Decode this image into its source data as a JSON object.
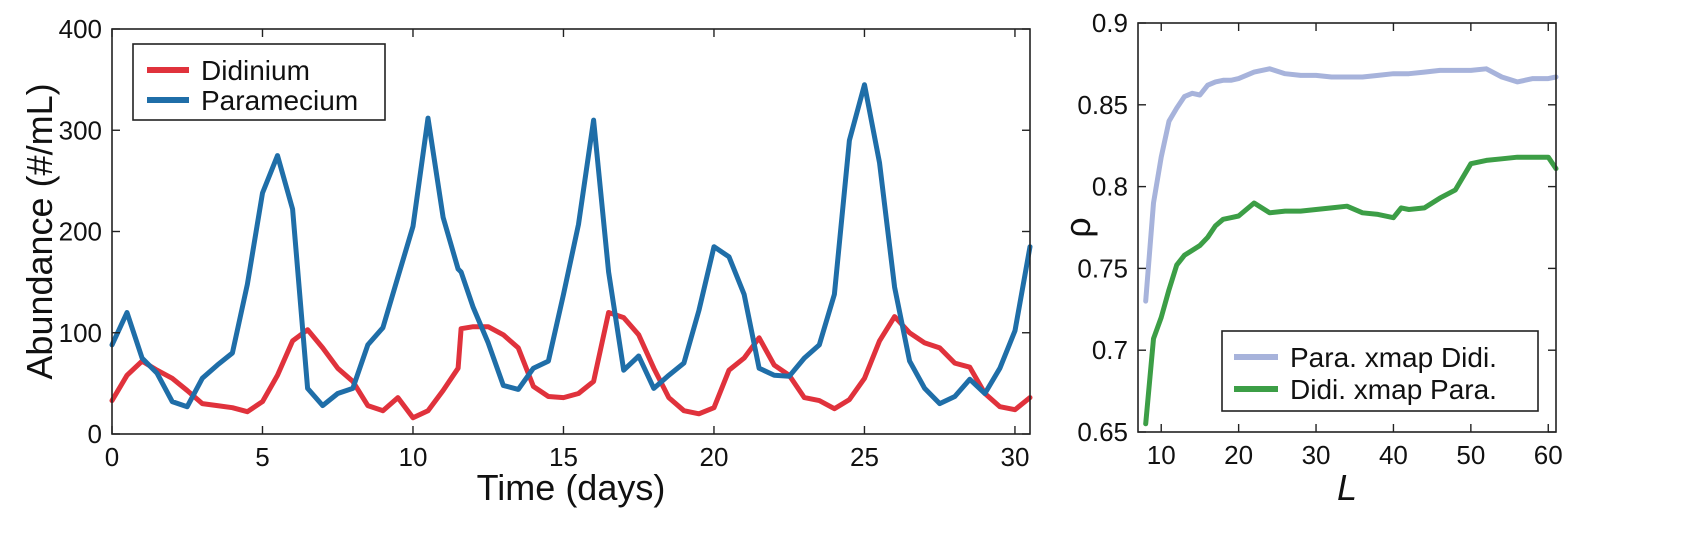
{
  "chart_data": [
    {
      "type": "line",
      "title": "",
      "xlabel": "Time (days)",
      "ylabel": "Abundance (#/mL)",
      "xlim": [
        0,
        30.5
      ],
      "ylim": [
        0,
        400
      ],
      "xticks": [
        "0",
        "5",
        "10",
        "15",
        "20",
        "25",
        "30"
      ],
      "yticks": [
        "0",
        "100",
        "200",
        "300",
        "400"
      ],
      "legend_position": "top-left",
      "grid": false,
      "series": [
        {
          "name": "Didinium",
          "color": "#e0323c",
          "x": [
            0,
            0.5,
            1,
            1.5,
            2,
            2.5,
            3,
            3.5,
            4,
            4.5,
            5,
            5.5,
            6,
            6.5,
            7,
            7.5,
            8,
            8.5,
            9,
            9.5,
            10,
            10.5,
            11,
            11.5,
            11.6,
            12,
            12.5,
            13,
            13.5,
            14,
            14.5,
            15,
            15.5,
            16,
            16.5,
            17,
            17.5,
            18,
            18.5,
            19,
            19.5,
            20,
            20.5,
            21,
            21.5,
            22,
            22.5,
            23,
            23.5,
            24,
            24.5,
            25,
            25.5,
            26,
            26.5,
            27,
            27.5,
            28,
            28.5,
            29,
            29.5,
            30,
            30.5
          ],
          "y": [
            33,
            58,
            72,
            63,
            55,
            43,
            30,
            28,
            26,
            22,
            32,
            58,
            92,
            103,
            85,
            65,
            52,
            28,
            23,
            36,
            16,
            23,
            43,
            65,
            104,
            106,
            106,
            98,
            85,
            47,
            37,
            36,
            40,
            52,
            120,
            115,
            98,
            65,
            36,
            23,
            20,
            26,
            63,
            75,
            95,
            68,
            58,
            36,
            33,
            25,
            34,
            55,
            92,
            116,
            100,
            90,
            85,
            70,
            66,
            40,
            27,
            24,
            36
          ]
        },
        {
          "name": "Paramecium",
          "color": "#1f6ea8",
          "x": [
            0,
            0.5,
            1,
            1.5,
            2,
            2.5,
            3,
            3.5,
            4,
            4.5,
            5,
            5.5,
            6,
            6.5,
            7,
            7.5,
            8,
            8.5,
            9,
            9.5,
            10,
            10.5,
            11,
            11.5,
            11.6,
            12,
            12.5,
            13,
            13.5,
            14,
            14.5,
            15,
            15.5,
            16,
            16.5,
            17,
            17.5,
            18,
            18.5,
            19,
            19.5,
            20,
            20.5,
            21,
            21.5,
            22,
            22.5,
            23,
            23.5,
            24,
            24.5,
            25,
            25.5,
            26,
            26.5,
            27,
            27.5,
            28,
            28.5,
            29,
            29.5,
            30,
            30.5
          ],
          "y": [
            88,
            120,
            75,
            60,
            32,
            27,
            55,
            68,
            80,
            148,
            238,
            275,
            222,
            45,
            28,
            40,
            45,
            88,
            105,
            155,
            205,
            312,
            214,
            163,
            160,
            125,
            90,
            48,
            44,
            65,
            72,
            138,
            207,
            310,
            160,
            63,
            77,
            45,
            58,
            70,
            122,
            185,
            175,
            138,
            65,
            58,
            57,
            75,
            88,
            138,
            290,
            345,
            268,
            145,
            72,
            45,
            30,
            37,
            54,
            40,
            65,
            102,
            185
          ]
        }
      ]
    },
    {
      "type": "line",
      "title": "",
      "xlabel": "L",
      "ylabel": "ρ",
      "xlim": [
        7,
        61
      ],
      "ylim": [
        0.65,
        0.9
      ],
      "xticks": [
        "10",
        "20",
        "30",
        "40",
        "50",
        "60"
      ],
      "yticks": [
        "0.65",
        "0.7",
        "0.75",
        "0.8",
        "0.85",
        "0.9"
      ],
      "legend_position": "bottom-right",
      "grid": false,
      "series": [
        {
          "name": "Para. xmap Didi.",
          "color": "#a7b3db",
          "x": [
            8,
            9,
            10,
            11,
            12,
            13,
            14,
            15,
            16,
            17,
            18,
            19,
            20,
            22,
            24,
            26,
            28,
            30,
            32,
            34,
            36,
            38,
            40,
            42,
            44,
            46,
            48,
            50,
            52,
            54,
            56,
            58,
            60,
            61
          ],
          "y": [
            0.73,
            0.79,
            0.818,
            0.84,
            0.848,
            0.855,
            0.857,
            0.856,
            0.862,
            0.864,
            0.865,
            0.865,
            0.866,
            0.87,
            0.872,
            0.869,
            0.868,
            0.868,
            0.867,
            0.867,
            0.867,
            0.868,
            0.869,
            0.869,
            0.87,
            0.871,
            0.871,
            0.871,
            0.872,
            0.867,
            0.864,
            0.866,
            0.866,
            0.867
          ]
        },
        {
          "name": "Didi. xmap Para.",
          "color": "#3c9e46",
          "x": [
            8,
            9,
            10,
            11,
            12,
            13,
            14,
            15,
            16,
            17,
            18,
            19,
            20,
            22,
            24,
            26,
            28,
            30,
            32,
            34,
            36,
            38,
            40,
            41,
            42,
            44,
            46,
            48,
            50,
            52,
            54,
            56,
            58,
            60,
            61
          ],
          "y": [
            0.655,
            0.707,
            0.72,
            0.737,
            0.752,
            0.758,
            0.761,
            0.764,
            0.769,
            0.776,
            0.78,
            0.781,
            0.782,
            0.79,
            0.784,
            0.785,
            0.785,
            0.786,
            0.787,
            0.788,
            0.784,
            0.783,
            0.781,
            0.787,
            0.786,
            0.787,
            0.793,
            0.798,
            0.814,
            0.816,
            0.817,
            0.818,
            0.818,
            0.818,
            0.811
          ]
        }
      ]
    }
  ]
}
